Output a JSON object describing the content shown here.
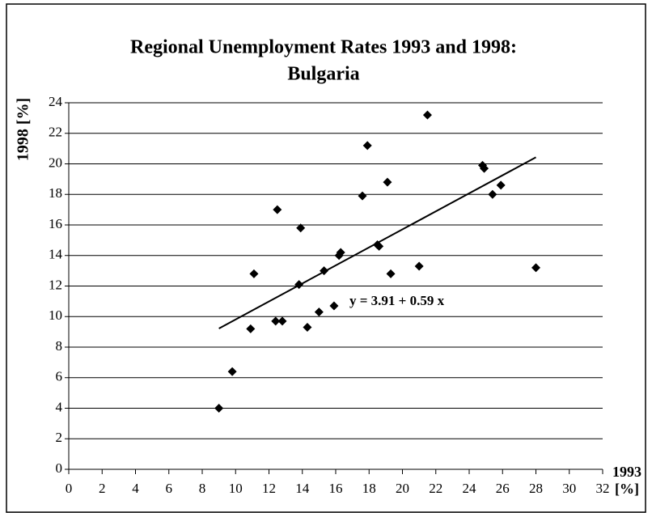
{
  "chart_data": {
    "type": "scatter",
    "title": [
      "Regional Unemployment Rates  1993 and 1998:",
      "Bulgaria"
    ],
    "x_label": [
      "1993",
      "[%]"
    ],
    "y_label": "1998 [%]",
    "annotation": "y = 3.91 + 0.59 x",
    "fit": {
      "intercept": 3.91,
      "slope": 0.59,
      "x": [
        9,
        28
      ]
    },
    "color": "#000000",
    "x": [
      9,
      9.8,
      10.9,
      11.1,
      12.4,
      12.5,
      12.8,
      13.8,
      13.9,
      14.3,
      15,
      15.3,
      15.9,
      16.2,
      16.3,
      17.6,
      17.9,
      18.5,
      18.6,
      19.1,
      19.3,
      21,
      21.5,
      24.8,
      24.9,
      25.4,
      25.9,
      28
    ],
    "values": [
      4,
      6.4,
      9.2,
      12.8,
      9.7,
      17,
      9.7,
      12.1,
      15.8,
      9.3,
      10.3,
      13,
      10.7,
      14,
      14.2,
      17.9,
      21.2,
      14.7,
      14.6,
      18.8,
      12.8,
      13.3,
      23.2,
      19.9,
      19.7,
      18,
      18.6,
      13.2
    ],
    "xlim": [
      0,
      32
    ],
    "xticks": [
      0,
      2,
      4,
      6,
      8,
      10,
      12,
      14,
      16,
      18,
      20,
      22,
      24,
      26,
      28,
      30,
      32
    ],
    "ylim": [
      0,
      24
    ],
    "yticks": [
      0,
      2,
      4,
      6,
      8,
      10,
      12,
      14,
      16,
      18,
      20,
      22,
      24
    ],
    "grid": true
  }
}
